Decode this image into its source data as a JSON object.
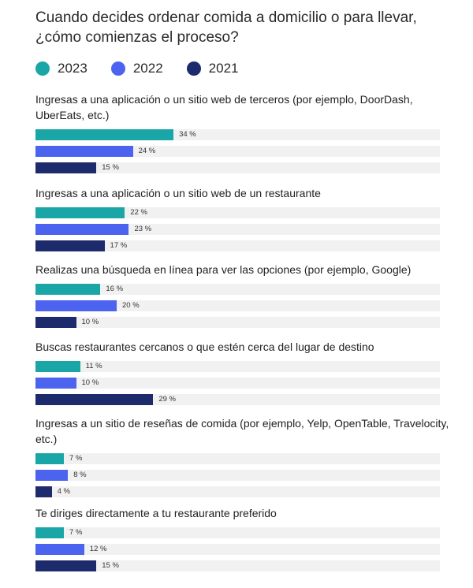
{
  "colors": {
    "s2023": "#1aa6a6",
    "s2022": "#4c63f0",
    "s2021": "#1d2a6b",
    "track": "#f1f1f1"
  },
  "chart_data": {
    "type": "bar",
    "orientation": "horizontal",
    "title": "Cuando decides ordenar comida a domicilio o para llevar, ¿cómo comienzas el proceso?",
    "value_suffix": " %",
    "xlim": [
      0,
      100
    ],
    "legend": [
      "2023",
      "2022",
      "2021"
    ],
    "categories": [
      "Ingresas a una aplicación o un sitio web de terceros (por ejemplo, DoorDash, UberEats, etc.)",
      "Ingresas a una aplicación o un sitio web de un restaurante",
      "Realizas una búsqueda en línea para ver las opciones (por ejemplo, Google)",
      "Buscas restaurantes cercanos o que estén cerca del lugar de destino",
      "Ingresas a un sitio de reseñas de comida (por ejemplo, Yelp, OpenTable, Travelocity, etc.)",
      "Te diriges directamente a tu restaurante preferido"
    ],
    "series": [
      {
        "name": "2023",
        "values": [
          34,
          22,
          16,
          11,
          7,
          7
        ]
      },
      {
        "name": "2022",
        "values": [
          24,
          23,
          20,
          10,
          8,
          12
        ]
      },
      {
        "name": "2021",
        "values": [
          15,
          17,
          10,
          29,
          4,
          15
        ]
      }
    ]
  }
}
